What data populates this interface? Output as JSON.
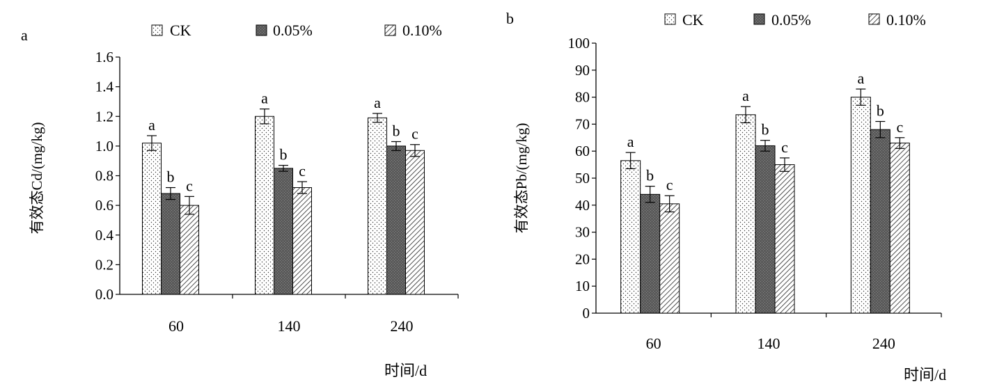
{
  "chart_data": [
    {
      "type": "bar",
      "panel_label": "a",
      "ylabel": "有效态Cd/(mg/kg)",
      "xlabel": "时间/d",
      "categories": [
        "60",
        "140",
        "240"
      ],
      "ylim": [
        0,
        1.6
      ],
      "yticks": [
        "0.0",
        "0.2",
        "0.4",
        "0.6",
        "0.8",
        "1.0",
        "1.2",
        "1.4",
        "1.6"
      ],
      "legend_position": "top",
      "grid": false,
      "series": [
        {
          "name": "CK",
          "pattern": "dots",
          "values": [
            1.02,
            1.2,
            1.19
          ],
          "errors": [
            0.05,
            0.05,
            0.03
          ],
          "labels": [
            "a",
            "a",
            "a"
          ]
        },
        {
          "name": "0.05%",
          "pattern": "dark",
          "values": [
            0.68,
            0.85,
            1.0
          ],
          "errors": [
            0.04,
            0.02,
            0.03
          ],
          "labels": [
            "b",
            "b",
            "b"
          ]
        },
        {
          "name": "0.10%",
          "pattern": "hatch",
          "values": [
            0.6,
            0.72,
            0.97
          ],
          "errors": [
            0.06,
            0.04,
            0.04
          ],
          "labels": [
            "c",
            "c",
            "c"
          ]
        }
      ]
    },
    {
      "type": "bar",
      "panel_label": "b",
      "ylabel": "有效态Pb/(mg/kg)",
      "xlabel": "时间/d",
      "categories": [
        "60",
        "140",
        "240"
      ],
      "ylim": [
        0,
        100
      ],
      "yticks": [
        "0",
        "10",
        "20",
        "30",
        "40",
        "50",
        "60",
        "70",
        "80",
        "90",
        "100"
      ],
      "legend_position": "top",
      "grid": false,
      "series": [
        {
          "name": "CK",
          "pattern": "dots",
          "values": [
            56.5,
            73.5,
            80.0
          ],
          "errors": [
            3.0,
            3.0,
            3.0
          ],
          "labels": [
            "a",
            "a",
            "a"
          ]
        },
        {
          "name": "0.05%",
          "pattern": "dark",
          "values": [
            44.0,
            62.0,
            68.0
          ],
          "errors": [
            3.0,
            2.0,
            3.0
          ],
          "labels": [
            "b",
            "b",
            "b"
          ]
        },
        {
          "name": "0.10%",
          "pattern": "hatch",
          "values": [
            40.5,
            55.0,
            63.0
          ],
          "errors": [
            3.0,
            2.5,
            2.0
          ],
          "labels": [
            "c",
            "c",
            "c"
          ]
        }
      ]
    }
  ]
}
